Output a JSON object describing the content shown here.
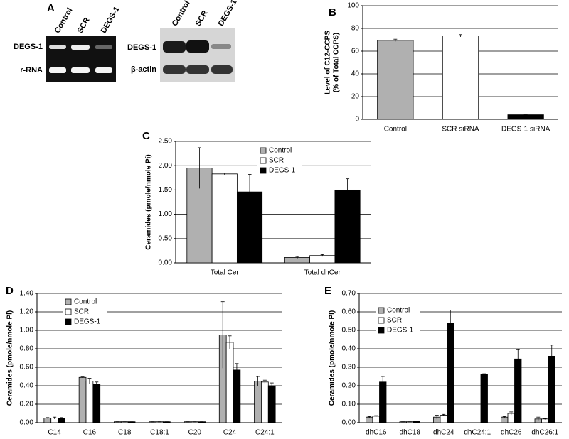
{
  "panel_a": {
    "label": "A",
    "gel1": {
      "lanes": [
        "Control",
        "SCR",
        "DEGS-1"
      ],
      "rows": [
        "DEGS-1",
        "r-RNA"
      ]
    },
    "gel2": {
      "lanes": [
        "Control",
        "SCR",
        "DEGS-1"
      ],
      "rows": [
        "DEGS-1",
        "β-actin"
      ]
    }
  },
  "chart_data": [
    {
      "type": "bar",
      "panel": "B",
      "ylabel": [
        "Level of C12-CCPS",
        "(% of Total CCPS)"
      ],
      "categories": [
        "Control",
        "SCR siRNA",
        "DEGS-1 siRNA"
      ],
      "values": [
        69.5,
        73.5,
        4
      ],
      "errors": [
        1,
        1,
        0
      ],
      "colors": [
        "#b0b0b0",
        "#ffffff",
        "#000000"
      ],
      "ylim": [
        0,
        100
      ],
      "yticks": [
        0,
        20,
        40,
        60,
        80,
        100
      ],
      "grid": true
    },
    {
      "type": "bar",
      "panel": "C",
      "ylabel": "Ceramides (pmole/nmole Pi)",
      "categories": [
        "Total Cer",
        "Total dhCer"
      ],
      "series": [
        {
          "name": "Control",
          "color": "#b0b0b0",
          "values": [
            1.95,
            0.11
          ],
          "errors": [
            0.42,
            0.02
          ]
        },
        {
          "name": "SCR",
          "color": "#ffffff",
          "values": [
            1.83,
            0.15
          ],
          "errors": [
            0.02,
            0.02
          ]
        },
        {
          "name": "DEGS-1",
          "color": "#000000",
          "values": [
            1.46,
            1.5
          ],
          "errors": [
            0.36,
            0.23
          ]
        }
      ],
      "ylim": [
        0,
        2.5
      ],
      "yticks": [
        {
          "value": 0,
          "label": "0.00"
        },
        {
          "value": 0.5,
          "label": "0.50"
        },
        {
          "value": 1,
          "label": "1.00"
        },
        {
          "value": 1.5,
          "label": "1.50"
        },
        {
          "value": 2,
          "label": "2.00"
        },
        {
          "value": 2.5,
          "label": "2.50"
        }
      ],
      "grid": true
    },
    {
      "type": "bar",
      "panel": "D",
      "ylabel": "Ceramides (pmole/nmole Pl)",
      "categories": [
        "C14",
        "C16",
        "C18",
        "C18:1",
        "C20",
        "C24",
        "C24:1"
      ],
      "series": [
        {
          "name": "Control",
          "color": "#b0b0b0",
          "values": [
            0.05,
            0.49,
            0.01,
            0.01,
            0.01,
            0.95,
            0.45
          ],
          "errors": [
            0.005,
            0.005,
            0,
            0,
            0,
            0.36,
            0.05
          ]
        },
        {
          "name": "SCR",
          "color": "#ffffff",
          "values": [
            0.05,
            0.45,
            0.01,
            0.01,
            0.01,
            0.87,
            0.44
          ],
          "errors": [
            0.01,
            0.03,
            0,
            0,
            0,
            0.07,
            0.02
          ]
        },
        {
          "name": "DEGS-1",
          "color": "#000000",
          "values": [
            0.05,
            0.42,
            0.01,
            0.01,
            0.01,
            0.57,
            0.4
          ],
          "errors": [
            0.005,
            0.02,
            0,
            0,
            0,
            0.07,
            0.03
          ]
        }
      ],
      "ylim": [
        0,
        1.4
      ],
      "yticks": [
        {
          "value": 0,
          "label": "0.00"
        },
        {
          "value": 0.2,
          "label": "0.20"
        },
        {
          "value": 0.4,
          "label": "0.40"
        },
        {
          "value": 0.6,
          "label": "0.60"
        },
        {
          "value": 0.8,
          "label": "0.80"
        },
        {
          "value": 1,
          "label": "1.00"
        },
        {
          "value": 1.2,
          "label": "1.20"
        },
        {
          "value": 1.4,
          "label": "1.40"
        }
      ],
      "grid": true
    },
    {
      "type": "bar",
      "panel": "E",
      "ylabel": "Ceramides (pmole/nmole Pl)",
      "categories": [
        "dhC16",
        "dhC18",
        "dhC24",
        "dhC24:1",
        "dhC26",
        "dhC26:1"
      ],
      "series": [
        {
          "name": "Control",
          "color": "#b0b0b0",
          "values": [
            0.03,
            0.005,
            0.03,
            0,
            0.03,
            0.02
          ],
          "errors": [
            0.003,
            0,
            0.01,
            0,
            0.003,
            0.01
          ]
        },
        {
          "name": "SCR",
          "color": "#ffffff",
          "values": [
            0.035,
            0.005,
            0.04,
            0,
            0.05,
            0.02
          ],
          "errors": [
            0.003,
            0,
            0.005,
            0,
            0.008,
            0.003
          ]
        },
        {
          "name": "DEGS-1",
          "color": "#000000",
          "values": [
            0.22,
            0.01,
            0.54,
            0.26,
            0.345,
            0.36
          ],
          "errors": [
            0.03,
            0,
            0.07,
            0.005,
            0.05,
            0.06
          ]
        }
      ],
      "ylim": [
        0,
        0.7
      ],
      "yticks": [
        {
          "value": 0,
          "label": "0.00"
        },
        {
          "value": 0.1,
          "label": "0.10"
        },
        {
          "value": 0.2,
          "label": "0.20"
        },
        {
          "value": 0.3,
          "label": "0.30"
        },
        {
          "value": 0.4,
          "label": "0.40"
        },
        {
          "value": 0.5,
          "label": "0.50"
        },
        {
          "value": 0.6,
          "label": "0.60"
        },
        {
          "value": 0.7,
          "label": "0.70"
        }
      ],
      "grid": true
    }
  ]
}
